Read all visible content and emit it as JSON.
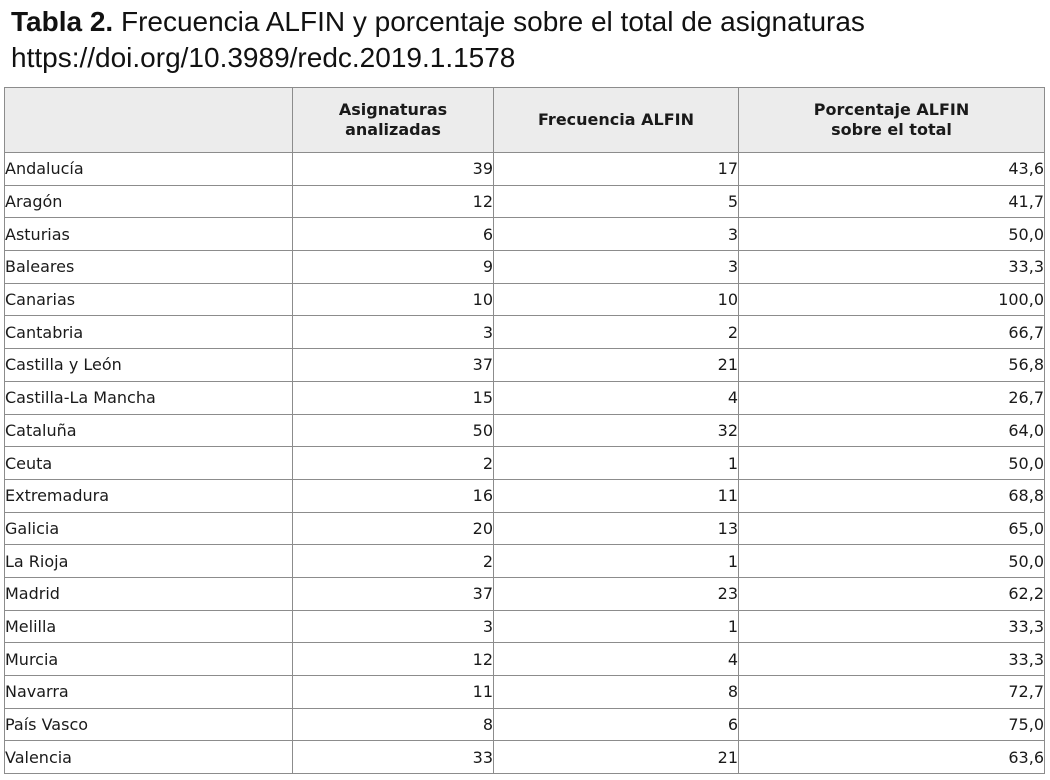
{
  "caption": {
    "label": "Tabla 2.",
    "title": " Frecuencia ALFIN y porcentaje sobre el total de asignaturas",
    "doi": "https://doi.org/10.3989/redc.2019.1.1578"
  },
  "table": {
    "headers": {
      "region": "",
      "subjects_line1": "Asignaturas",
      "subjects_line2": "analizadas",
      "frequency": "Frecuencia ALFIN",
      "percent_line1": "Porcentaje ALFIN",
      "percent_line2": "sobre el total"
    },
    "rows": [
      {
        "region": "Andalucía",
        "subjects": "39",
        "frequency": "17",
        "percent": "43,6"
      },
      {
        "region": "Aragón",
        "subjects": "12",
        "frequency": "5",
        "percent": "41,7"
      },
      {
        "region": "Asturias",
        "subjects": "6",
        "frequency": "3",
        "percent": "50,0"
      },
      {
        "region": "Baleares",
        "subjects": "9",
        "frequency": "3",
        "percent": "33,3"
      },
      {
        "region": "Canarias",
        "subjects": "10",
        "frequency": "10",
        "percent": "100,0"
      },
      {
        "region": "Cantabria",
        "subjects": "3",
        "frequency": "2",
        "percent": "66,7"
      },
      {
        "region": "Castilla y León",
        "subjects": "37",
        "frequency": "21",
        "percent": "56,8"
      },
      {
        "region": "Castilla-La Mancha",
        "subjects": "15",
        "frequency": "4",
        "percent": "26,7"
      },
      {
        "region": "Cataluña",
        "subjects": "50",
        "frequency": "32",
        "percent": "64,0"
      },
      {
        "region": "Ceuta",
        "subjects": "2",
        "frequency": "1",
        "percent": "50,0"
      },
      {
        "region": "Extremadura",
        "subjects": "16",
        "frequency": "11",
        "percent": "68,8"
      },
      {
        "region": "Galicia",
        "subjects": "20",
        "frequency": "13",
        "percent": "65,0"
      },
      {
        "region": "La Rioja",
        "subjects": "2",
        "frequency": "1",
        "percent": "50,0"
      },
      {
        "region": "Madrid",
        "subjects": "37",
        "frequency": "23",
        "percent": "62,2"
      },
      {
        "region": "Melilla",
        "subjects": "3",
        "frequency": "1",
        "percent": "33,3"
      },
      {
        "region": "Murcia",
        "subjects": "12",
        "frequency": "4",
        "percent": "33,3"
      },
      {
        "region": "Navarra",
        "subjects": "11",
        "frequency": "8",
        "percent": "72,7"
      },
      {
        "region": "País Vasco",
        "subjects": "8",
        "frequency": "6",
        "percent": "75,0"
      },
      {
        "region": "Valencia",
        "subjects": "33",
        "frequency": "21",
        "percent": "63,6"
      }
    ]
  }
}
